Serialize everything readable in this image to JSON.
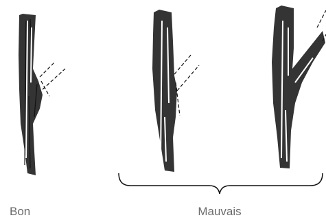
{
  "labels": {
    "good": "Bon",
    "bad": "Mauvais"
  }
}
